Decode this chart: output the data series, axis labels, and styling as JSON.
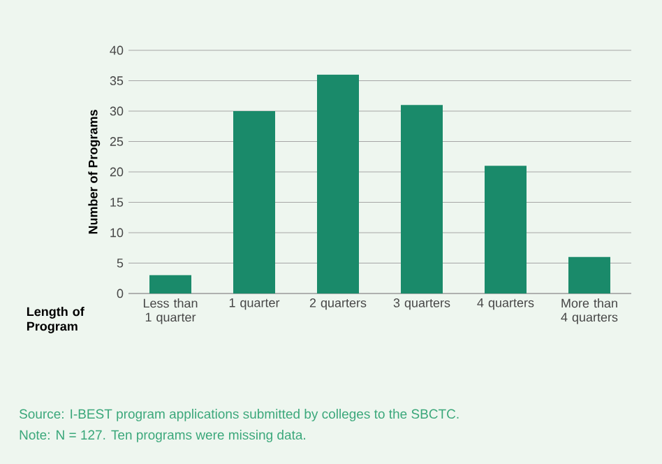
{
  "chart_data": {
    "type": "bar",
    "xlabel": "Length of Program",
    "ylabel": "Number of Programs",
    "categories": [
      "Less than 1 quarter",
      "1 quarter",
      "2 quarters",
      "3 quarters",
      "4 quarters",
      "More than 4 quarters"
    ],
    "values": [
      3,
      30,
      36,
      31,
      21,
      6
    ],
    "color": "#1a8a6a",
    "ylim": [
      0,
      40
    ],
    "yticks": [
      0,
      5,
      10,
      15,
      20,
      25,
      30,
      35,
      40
    ],
    "grid": "y",
    "annotations": [
      "Source: I-BEST program applications submitted by colleges to the SBCTC.",
      "Note: N = 127. Ten programs were missing data."
    ]
  }
}
